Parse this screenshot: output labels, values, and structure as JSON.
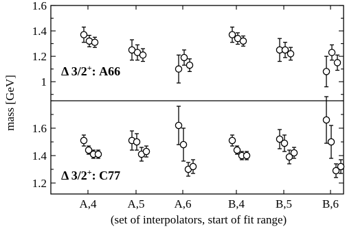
{
  "chart_data": {
    "type": "scatter",
    "ylabel": "mass [GeV]",
    "xlabel": "(set of interpolators, start of fit range)",
    "categories": [
      "A,4",
      "A,5",
      "A,6",
      "B,4",
      "B,5",
      "B,6"
    ],
    "panels": [
      {
        "label_main": "Δ 3/2",
        "label_sup": "+",
        "label_suffix": ": A66",
        "ylim": [
          0.85,
          1.6
        ],
        "yticks": [
          1,
          1.2,
          1.4,
          1.6
        ],
        "ytick_labels": [
          "1",
          "1.2",
          "1.4",
          "1.6"
        ],
        "groups": [
          {
            "category": "A,4",
            "points": [
              [
                1.37,
                0.06
              ],
              [
                1.32,
                0.045
              ],
              [
                1.31,
                0.04
              ]
            ]
          },
          {
            "category": "A,5",
            "points": [
              [
                1.25,
                0.08
              ],
              [
                1.23,
                0.06
              ],
              [
                1.21,
                0.05
              ]
            ]
          },
          {
            "category": "A,6",
            "points": [
              [
                1.1,
                0.11
              ],
              [
                1.19,
                0.06
              ],
              [
                1.13,
                0.05
              ]
            ]
          },
          {
            "category": "B,4",
            "points": [
              [
                1.37,
                0.06
              ],
              [
                1.34,
                0.045
              ],
              [
                1.32,
                0.04
              ]
            ]
          },
          {
            "category": "B,5",
            "points": [
              [
                1.25,
                0.09
              ],
              [
                1.25,
                0.06
              ],
              [
                1.22,
                0.05
              ]
            ]
          },
          {
            "category": "B,6",
            "points": [
              [
                1.08,
                0.12
              ],
              [
                1.23,
                0.06
              ],
              [
                1.15,
                0.06
              ]
            ]
          }
        ]
      },
      {
        "label_main": "Δ 3/2",
        "label_sup": "+",
        "label_suffix": ": C77",
        "ylim": [
          1.12,
          1.8
        ],
        "yticks": [
          1.2,
          1.4,
          1.6
        ],
        "ytick_labels": [
          "1.2",
          "1.4",
          "1.6"
        ],
        "groups": [
          {
            "category": "A,4",
            "points": [
              [
                1.51,
                0.04
              ],
              [
                1.44,
                0.03
              ],
              [
                1.41,
                0.03
              ],
              [
                1.41,
                0.03
              ]
            ]
          },
          {
            "category": "A,5",
            "points": [
              [
                1.51,
                0.07
              ],
              [
                1.5,
                0.06
              ],
              [
                1.41,
                0.05
              ],
              [
                1.43,
                0.04
              ]
            ]
          },
          {
            "category": "A,6",
            "points": [
              [
                1.62,
                0.14
              ],
              [
                1.48,
                0.12
              ],
              [
                1.3,
                0.05
              ],
              [
                1.32,
                0.05
              ]
            ]
          },
          {
            "category": "B,4",
            "points": [
              [
                1.51,
                0.04
              ],
              [
                1.44,
                0.03
              ],
              [
                1.4,
                0.03
              ],
              [
                1.4,
                0.03
              ]
            ]
          },
          {
            "category": "B,5",
            "points": [
              [
                1.52,
                0.07
              ],
              [
                1.49,
                0.06
              ],
              [
                1.39,
                0.05
              ],
              [
                1.42,
                0.04
              ]
            ]
          },
          {
            "category": "B,6",
            "points": [
              [
                1.66,
                0.17
              ],
              [
                1.5,
                0.12
              ],
              [
                1.29,
                0.05
              ],
              [
                1.32,
                0.05
              ]
            ]
          }
        ]
      }
    ]
  }
}
